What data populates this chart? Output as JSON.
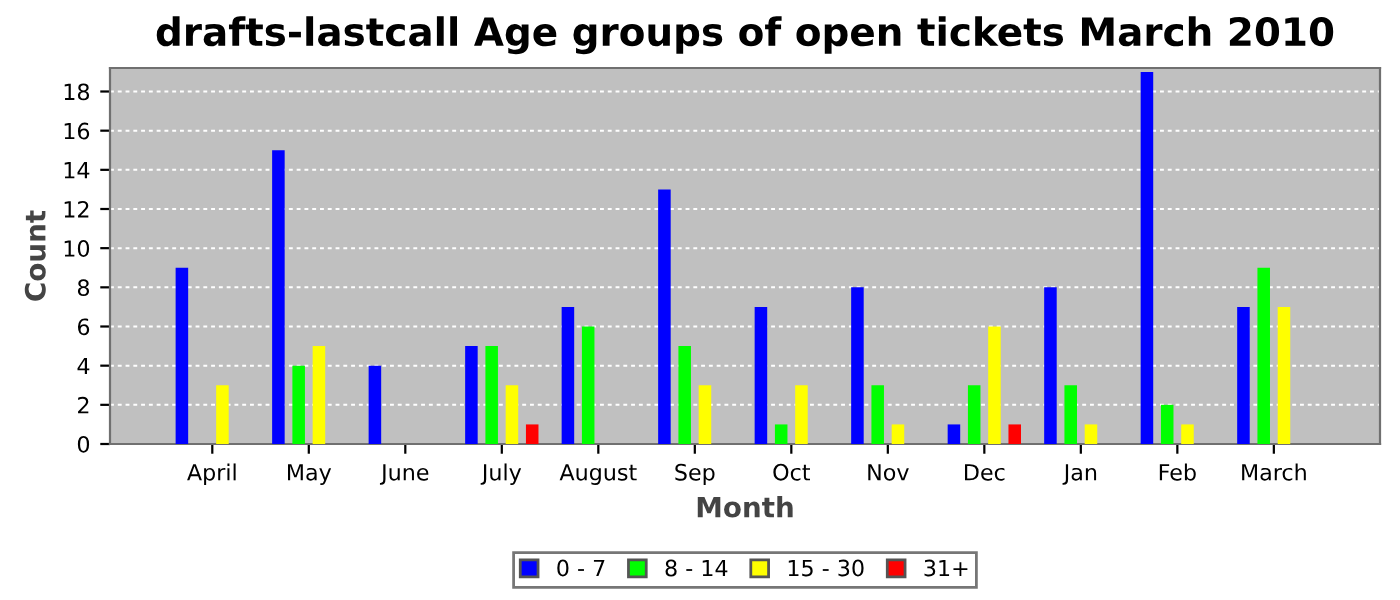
{
  "chart_data": {
    "type": "bar",
    "title": "drafts-lastcall Age groups of open tickets March 2010",
    "xlabel": "Month",
    "ylabel": "Count",
    "categories": [
      "April",
      "May",
      "June",
      "July",
      "August",
      "Sep",
      "Oct",
      "Nov",
      "Dec",
      "Jan",
      "Feb",
      "March"
    ],
    "series": [
      {
        "name": "0 - 7",
        "color": "#0000ff",
        "values": [
          9,
          15,
          4,
          5,
          7,
          13,
          7,
          8,
          1,
          8,
          19,
          7
        ]
      },
      {
        "name": "8 - 14",
        "color": "#00ff00",
        "values": [
          0,
          4,
          0,
          5,
          6,
          5,
          1,
          3,
          3,
          3,
          2,
          9
        ]
      },
      {
        "name": "15 - 30",
        "color": "#ffff00",
        "values": [
          3,
          5,
          0,
          3,
          0,
          3,
          3,
          1,
          6,
          1,
          1,
          7
        ]
      },
      {
        "name": "31+",
        "color": "#ff0000",
        "values": [
          0,
          0,
          0,
          1,
          0,
          0,
          0,
          0,
          1,
          0,
          0,
          0
        ]
      }
    ],
    "ylim": [
      0,
      19.2
    ],
    "yticks": [
      0,
      2,
      4,
      6,
      8,
      10,
      12,
      14,
      16,
      18
    ],
    "grid": "y",
    "legend": "bottom"
  }
}
